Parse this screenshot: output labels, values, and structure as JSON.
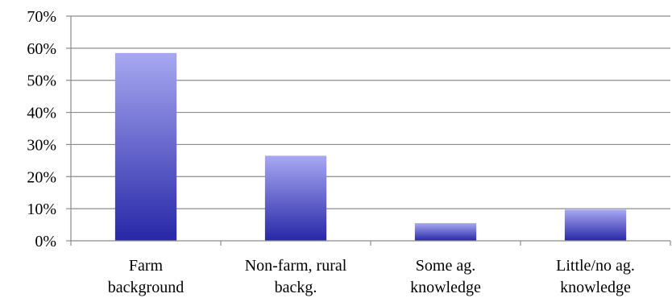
{
  "chart_data": {
    "type": "bar",
    "title": "",
    "xlabel": "",
    "ylabel": "",
    "categories": [
      [
        "Farm",
        "background"
      ],
      [
        "Non-farm, rural",
        "backg."
      ],
      [
        "Some ag.",
        "knowledge"
      ],
      [
        "Little/no ag.",
        "knowledge"
      ]
    ],
    "values": [
      0.585,
      0.265,
      0.055,
      0.097
    ],
    "ylim": [
      0,
      0.7
    ],
    "yticks": [
      0,
      0.1,
      0.2,
      0.3,
      0.4,
      0.5,
      0.6,
      0.7
    ],
    "ytick_labels": [
      "0%",
      "10%",
      "20%",
      "30%",
      "40%",
      "50%",
      "60%",
      "70%"
    ],
    "grid": true,
    "legend": "none",
    "colors": {
      "bar_top": "#a8a8f2",
      "bar_bottom": "#2727a8",
      "grid": "#8c8c8c",
      "axis": "#8c8c8c"
    }
  }
}
